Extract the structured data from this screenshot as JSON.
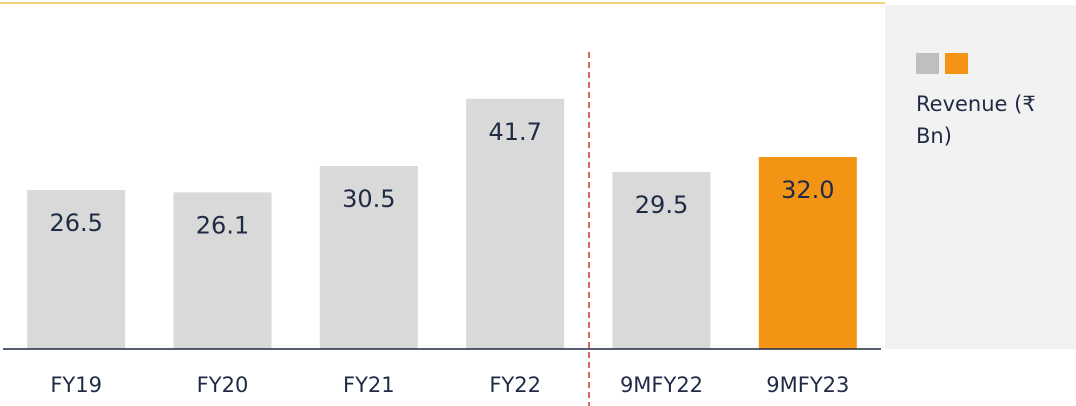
{
  "chart_data": {
    "type": "bar",
    "categories": [
      "FY19",
      "FY20",
      "FY21",
      "FY22",
      "9MFY22",
      "9MFY23"
    ],
    "series": [
      {
        "name": "Revenue (₹ Bn)",
        "values": [
          26.5,
          26.1,
          30.5,
          41.7,
          29.5,
          32.0
        ],
        "value_labels": [
          "26.5",
          "26.1",
          "30.5",
          "41.7",
          "29.5",
          "32.0"
        ],
        "colors": [
          "#d9d9d9",
          "#d9d9d9",
          "#d9d9d9",
          "#d9d9d9",
          "#d9d9d9",
          "#f39415"
        ]
      }
    ],
    "ylim": [
      0,
      50
    ]
  }
}
